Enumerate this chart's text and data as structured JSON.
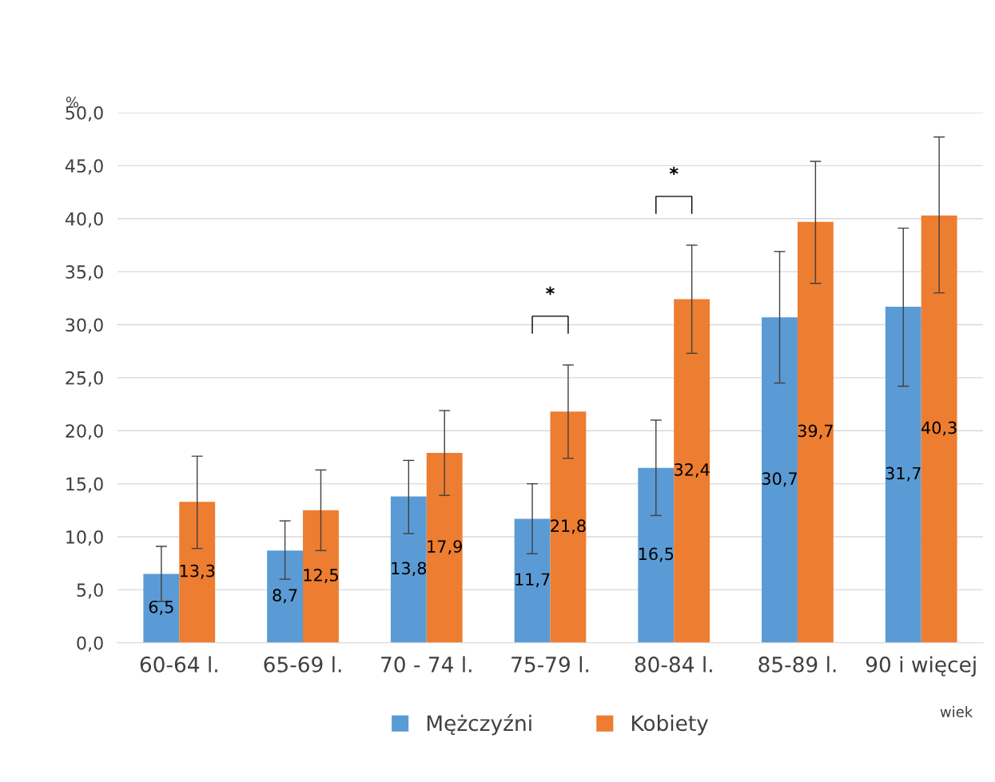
{
  "chart_data": {
    "type": "bar",
    "categories": [
      "60-64 l.",
      "65-69 l.",
      "70 - 74 l.",
      "75-79 l.",
      "80-84 l.",
      "85-89 l.",
      "90 i więcej"
    ],
    "series": [
      {
        "name": "Mężczyźni",
        "color": "#5b9bd5",
        "values": [
          6.5,
          8.7,
          13.8,
          11.7,
          16.5,
          30.7,
          31.7
        ],
        "value_labels": [
          "6,5",
          "8,7",
          "13,8",
          "11,7",
          "16,5",
          "30,7",
          "31,7"
        ],
        "errors": [
          [
            3.9,
            9.1
          ],
          [
            6.0,
            11.5
          ],
          [
            10.3,
            17.2
          ],
          [
            8.4,
            15.0
          ],
          [
            12.0,
            21.0
          ],
          [
            24.5,
            36.9
          ],
          [
            24.2,
            39.1
          ]
        ]
      },
      {
        "name": "Kobiety",
        "color": "#ed7d31",
        "values": [
          13.3,
          12.5,
          17.9,
          21.8,
          32.4,
          39.7,
          40.3
        ],
        "value_labels": [
          "13,3",
          "12,5",
          "17,9",
          "21,8",
          "32,4",
          "39,7",
          "40,3"
        ],
        "errors": [
          [
            8.9,
            17.6
          ],
          [
            8.7,
            16.3
          ],
          [
            13.9,
            21.9
          ],
          [
            17.4,
            26.2
          ],
          [
            27.3,
            37.5
          ],
          [
            33.9,
            45.4
          ],
          [
            33.0,
            47.7
          ]
        ]
      }
    ],
    "ylabel": "%",
    "xlabel": "wiek",
    "ylim": [
      0,
      50
    ],
    "yticks": [
      {
        "value": 0,
        "label": "0,0"
      },
      {
        "value": 5,
        "label": "5,0"
      },
      {
        "value": 10,
        "label": "10,0"
      },
      {
        "value": 15,
        "label": "15,0"
      },
      {
        "value": 20,
        "label": "20,0"
      },
      {
        "value": 25,
        "label": "25,0"
      },
      {
        "value": 30,
        "label": "30,0"
      },
      {
        "value": 35,
        "label": "35,0"
      },
      {
        "value": 40,
        "label": "40,0"
      },
      {
        "value": 45,
        "label": "45,0"
      },
      {
        "value": 50,
        "label": "50,0"
      }
    ],
    "annotations": [
      "*",
      "*"
    ],
    "grid": "y",
    "legend": "bottom"
  }
}
